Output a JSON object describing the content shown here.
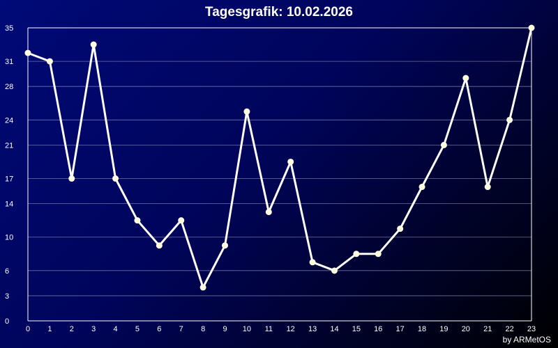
{
  "chart_data": {
    "type": "line",
    "title": "Tagesgrafik: 10.02.2026",
    "credit": "by ARMetOS",
    "xlabel": "",
    "ylabel": "",
    "x": [
      "0",
      "1",
      "2",
      "3",
      "4",
      "5",
      "6",
      "7",
      "8",
      "9",
      "10",
      "11",
      "12",
      "13",
      "14",
      "15",
      "16",
      "17",
      "18",
      "19",
      "20",
      "21",
      "22",
      "23"
    ],
    "y_ticks": [
      0,
      3,
      6,
      10,
      14,
      17,
      21,
      24,
      28,
      31,
      35
    ],
    "ylim": [
      0,
      35
    ],
    "grid": true,
    "series": [
      {
        "values": [
          32,
          31,
          17,
          33,
          17,
          12,
          9,
          12,
          4,
          9,
          25,
          13,
          19,
          7,
          6,
          8,
          8,
          11,
          16,
          21,
          29,
          16,
          24,
          35
        ]
      }
    ],
    "colors": {
      "line": "#ffffff",
      "marker": "#fffde0",
      "grid": "#9aa0c8",
      "axis": "#ffffff"
    }
  }
}
